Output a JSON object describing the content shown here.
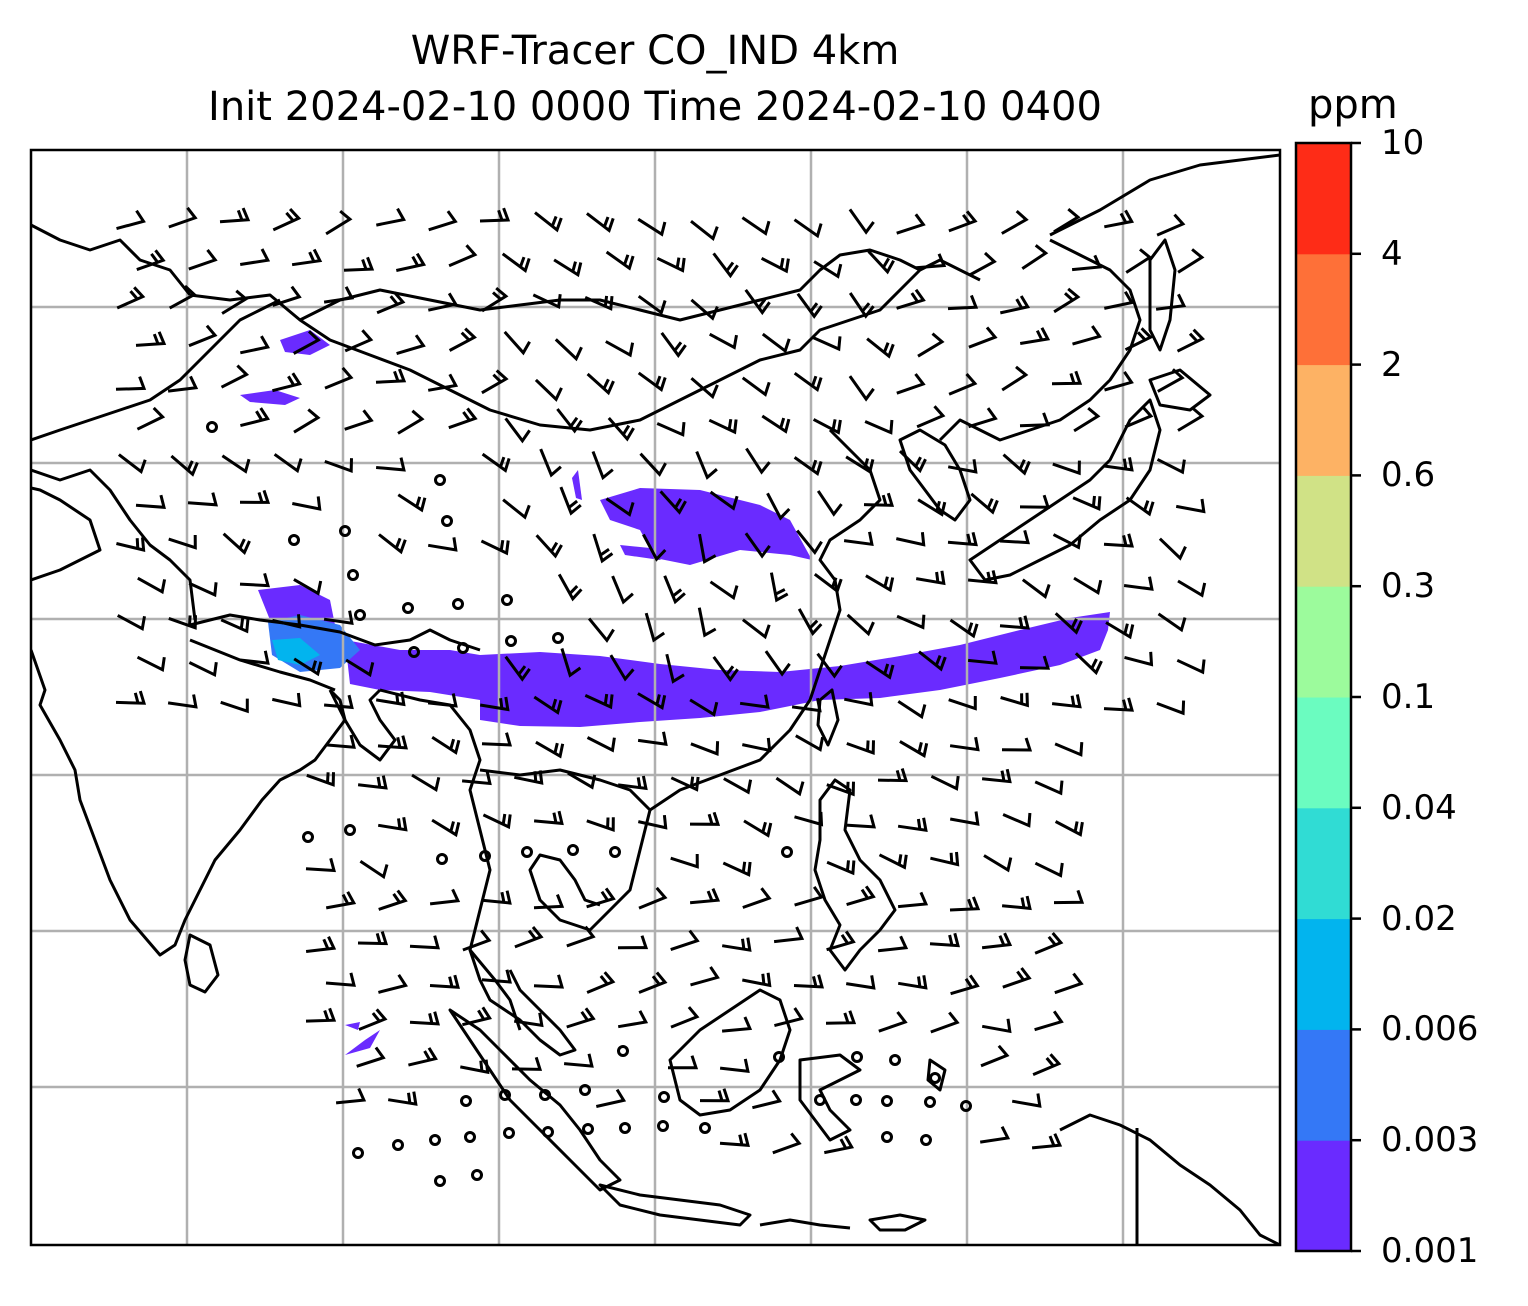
{
  "title": {
    "line1": "WRF-Tracer CO_IND 4km",
    "line2": "Init 2024-02-10 0000 Time 2024-02-10 0400"
  },
  "colorbar": {
    "units": "ppm",
    "tick_labels": [
      "0.001",
      "0.003",
      "0.006",
      "0.02",
      "0.04",
      "0.1",
      "0.3",
      "0.6",
      "2",
      "4",
      "10"
    ],
    "colors": [
      "#6a2bff",
      "#3478f6",
      "#02b4ee",
      "#30dcd4",
      "#6bfcc0",
      "#9cfb9c",
      "#d0e286",
      "#fdb264",
      "#fe7038",
      "#fe2c17"
    ]
  },
  "map": {
    "background": "#ffffff",
    "gridline_color": "#b0b0b0",
    "coastline_color": "#000000",
    "barb_color": "#000000",
    "plume_colors": {
      "low": "#6a2bff",
      "mid": "#3478f6",
      "core": "#02b4ee"
    }
  }
}
